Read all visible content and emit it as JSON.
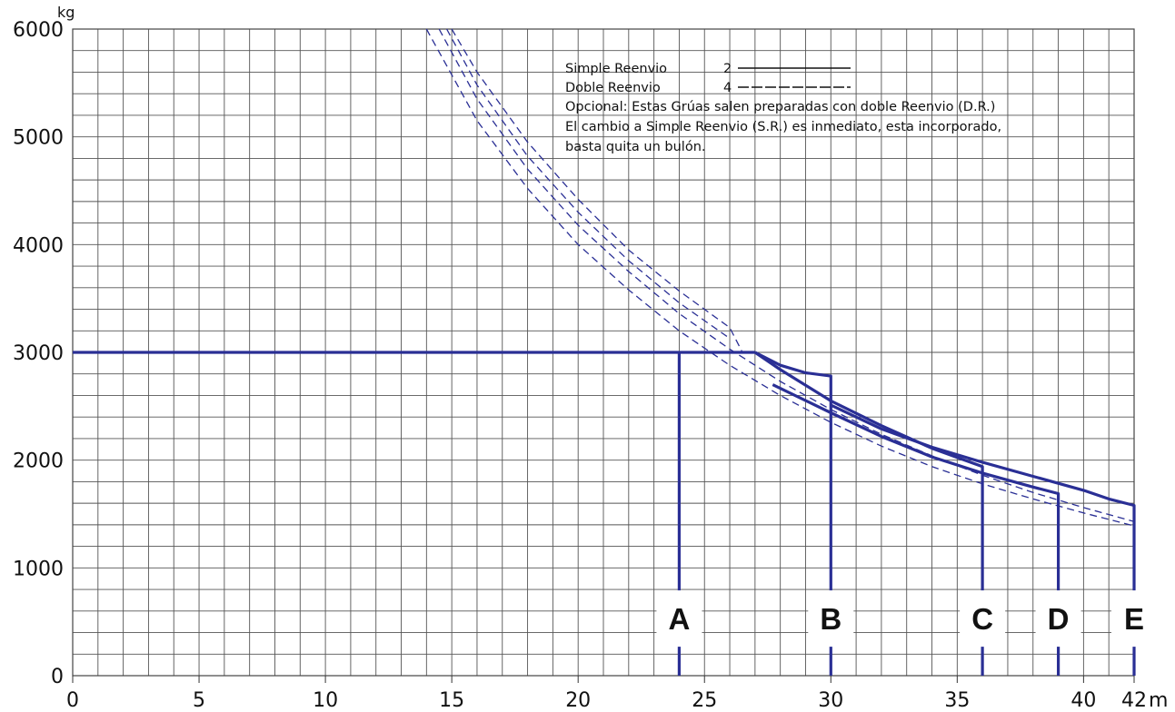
{
  "chart_data": {
    "type": "line",
    "title": "",
    "xlabel": "m",
    "ylabel": "kg",
    "xlim": [
      0,
      42
    ],
    "ylim": [
      0,
      6000
    ],
    "grid": true,
    "x_ticks": [
      "0",
      "5",
      "10",
      "15",
      "20",
      "25",
      "30",
      "35",
      "40",
      "42"
    ],
    "y_ticks": [
      "0",
      "1000",
      "2000",
      "3000",
      "4000",
      "5000",
      "6000"
    ],
    "legend": {
      "position": "top-right",
      "entries": [
        {
          "label": "Simple Reenvio",
          "value": "2",
          "style": "solid"
        },
        {
          "label": "Doble Reenvio",
          "value": "4",
          "style": "dashed"
        }
      ],
      "notes": [
        "Opcional: Estas Grúas salen preparadas con doble Reenvio (D.R.)",
        "El cambio a Simple Reenvio (S.R.) es inmediato, esta incorporado,",
        "basta quita un bulón."
      ]
    },
    "jib_markers": [
      {
        "label": "A",
        "x": 24
      },
      {
        "label": "B",
        "x": 30
      },
      {
        "label": "C",
        "x": 36
      },
      {
        "label": "D",
        "x": 39
      },
      {
        "label": "E",
        "x": 42
      }
    ],
    "series": [
      {
        "name": "max-load",
        "style": "solid",
        "x": [
          0,
          27
        ],
        "y": [
          3000,
          3000
        ]
      },
      {
        "name": "A",
        "style": "solid",
        "x": [
          24,
          24
        ],
        "y": [
          3000,
          0
        ]
      },
      {
        "name": "B",
        "style": "solid",
        "x": [
          27,
          28,
          29,
          30,
          30,
          30
        ],
        "y": [
          3000,
          2880,
          2810,
          2780,
          2780,
          0
        ]
      },
      {
        "name": "C",
        "style": "solid",
        "x": [
          27,
          28,
          30,
          32,
          34,
          36,
          36
        ],
        "y": [
          3000,
          2840,
          2550,
          2320,
          2110,
          1940,
          0
        ]
      },
      {
        "name": "D",
        "style": "solid",
        "x": [
          27.7,
          30,
          32,
          34,
          36,
          38,
          39,
          39
        ],
        "y": [
          2700,
          2440,
          2220,
          2030,
          1880,
          1750,
          1690,
          0
        ]
      },
      {
        "name": "E",
        "style": "solid",
        "x": [
          30,
          32,
          34,
          36,
          38,
          40,
          41,
          42,
          42
        ],
        "y": [
          2510,
          2290,
          2120,
          1980,
          1850,
          1720,
          1640,
          1580,
          0
        ]
      },
      {
        "name": "dashed-1",
        "style": "dashed",
        "x": [
          14,
          16,
          18,
          20,
          22,
          24,
          26,
          28,
          30,
          32,
          34,
          36,
          38,
          40,
          42
        ],
        "y": [
          6000,
          5150,
          4520,
          4000,
          3580,
          3200,
          2880,
          2600,
          2350,
          2130,
          1940,
          1780,
          1640,
          1510,
          1390
        ]
      },
      {
        "name": "dashed-2",
        "style": "dashed",
        "x": [
          14.5,
          16,
          18,
          20,
          22,
          24,
          26,
          28,
          30,
          32,
          34,
          36,
          38,
          40,
          42
        ],
        "y": [
          6000,
          5350,
          4700,
          4180,
          3750,
          3360,
          3030,
          2730,
          2470,
          2240,
          2040,
          1860,
          1700,
          1560,
          1430
        ]
      },
      {
        "name": "dashed-3",
        "style": "dashed",
        "x": [
          15,
          16,
          18,
          20,
          22,
          24,
          26,
          26.5
        ],
        "y": [
          6000,
          5600,
          4950,
          4420,
          3950,
          3570,
          3230,
          3000
        ]
      },
      {
        "name": "dashed-4",
        "style": "dashed",
        "x": [
          14.8,
          16,
          18,
          20,
          22,
          24,
          26
        ],
        "y": [
          6000,
          5480,
          4820,
          4300,
          3850,
          3460,
          3130
        ]
      }
    ]
  }
}
